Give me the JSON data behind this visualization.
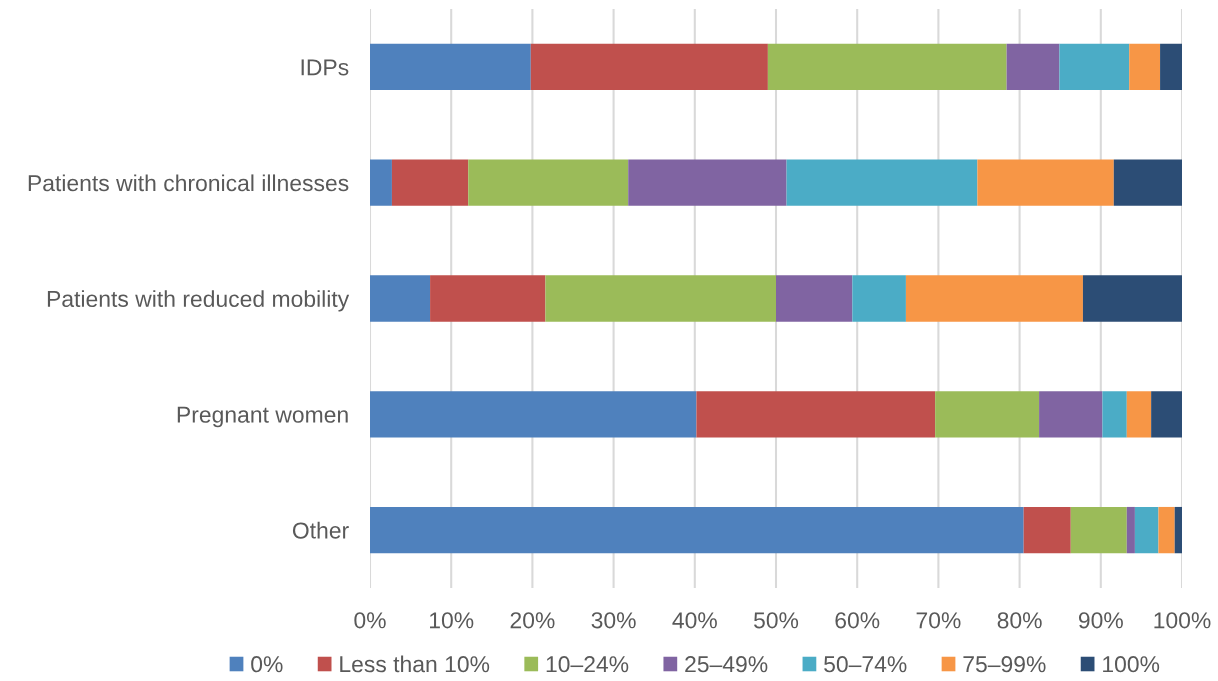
{
  "chart_data": {
    "type": "bar",
    "orientation": "horizontal",
    "stacked": true,
    "categories": [
      "IDPs",
      "Patients with chronical illnesses",
      "Patients with reduced mobility",
      "Pregnant women",
      "Other"
    ],
    "series": [
      {
        "name": "0%",
        "color": "#4f81bd",
        "values": [
          19.8,
          2.7,
          7.4,
          40.2,
          80.5
        ]
      },
      {
        "name": "Less than 10%",
        "color": "#c0504d",
        "values": [
          29.2,
          9.4,
          14.2,
          29.4,
          5.8
        ]
      },
      {
        "name": "10–24%",
        "color": "#9bbb59",
        "values": [
          29.4,
          19.7,
          28.4,
          12.8,
          6.9
        ]
      },
      {
        "name": "25–49%",
        "color": "#8064a2",
        "values": [
          6.5,
          19.5,
          9.4,
          7.8,
          1.0
        ]
      },
      {
        "name": "50–74%",
        "color": "#4bacc6",
        "values": [
          8.6,
          23.5,
          6.6,
          3.0,
          2.9
        ]
      },
      {
        "name": "75–99%",
        "color": "#f79646",
        "values": [
          3.8,
          16.8,
          21.8,
          3.0,
          2.0
        ]
      },
      {
        "name": "100%",
        "color": "#2c4d75",
        "values": [
          2.7,
          8.4,
          12.2,
          3.8,
          0.9
        ]
      }
    ],
    "xlim": [
      0,
      100
    ],
    "xticks": [
      {
        "value": 0,
        "label": "0%"
      },
      {
        "value": 10,
        "label": "10%"
      },
      {
        "value": 20,
        "label": "20%"
      },
      {
        "value": 30,
        "label": "30%"
      },
      {
        "value": 40,
        "label": "40%"
      },
      {
        "value": 50,
        "label": "50%"
      },
      {
        "value": 60,
        "label": "60%"
      },
      {
        "value": 70,
        "label": "70%"
      },
      {
        "value": 80,
        "label": "80%"
      },
      {
        "value": 90,
        "label": "90%"
      },
      {
        "value": 100,
        "label": "100%"
      }
    ],
    "grid": "x",
    "legend": "bottom"
  }
}
